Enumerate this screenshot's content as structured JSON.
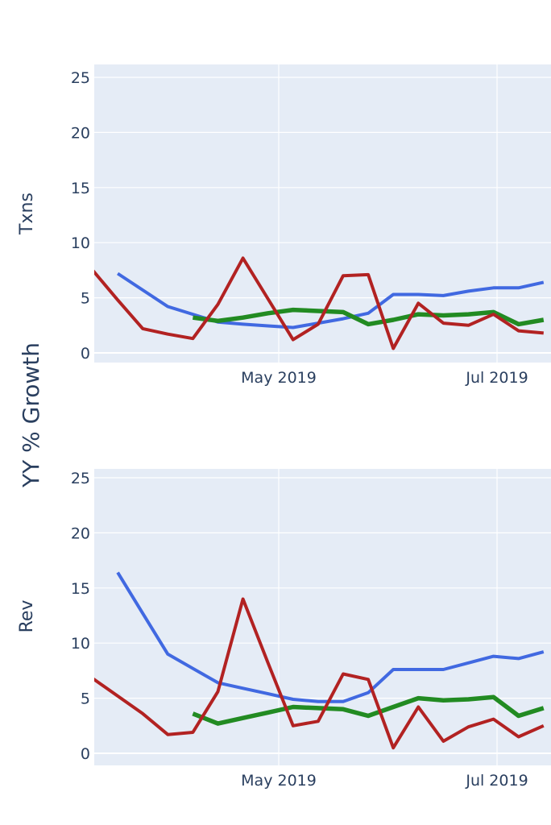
{
  "chart_data": {
    "type": "line",
    "title": "YY % Growth",
    "ylabel": "YY % Growth",
    "x": [
      "2019-03-10",
      "2019-03-17",
      "2019-03-24",
      "2019-03-31",
      "2019-04-07",
      "2019-04-14",
      "2019-04-21",
      "2019-04-28",
      "2019-05-05",
      "2019-05-12",
      "2019-05-19",
      "2019-05-26",
      "2019-06-02",
      "2019-06-09",
      "2019-06-16",
      "2019-06-23",
      "2019-06-30",
      "2019-07-07",
      "2019-07-14"
    ],
    "x_tick_labels": [
      {
        "date": "2019-05-01",
        "label": "May 2019"
      },
      {
        "date": "2019-07-01",
        "label": "Jul 2019"
      }
    ],
    "grid": true,
    "colors": [
      "#4169e1",
      "#228b22",
      "#b22222"
    ],
    "panels": [
      {
        "ylabel": "Txns",
        "ylim": [
          -0.9,
          25.8
        ],
        "yticks": [
          "0",
          "5",
          "10",
          "15",
          "20",
          "25"
        ],
        "series": [
          {
            "name": "blue",
            "color": "#4169e1",
            "values": [
              null,
              7.2,
              5.7,
              4.2,
              3.5,
              2.8,
              2.6,
              2.45,
              2.3,
              2.7,
              3.1,
              3.6,
              5.3,
              5.3,
              5.2,
              5.6,
              5.9,
              5.9,
              6.4
            ]
          },
          {
            "name": "green",
            "color": "#228b22",
            "values": [
              null,
              null,
              null,
              null,
              3.2,
              2.9,
              3.2,
              3.6,
              3.9,
              3.8,
              3.7,
              2.6,
              3.0,
              3.5,
              3.4,
              3.5,
              3.7,
              2.6,
              3.0
            ]
          },
          {
            "name": "red",
            "color": "#b22222",
            "values": [
              7.5,
              4.8,
              2.2,
              1.7,
              1.3,
              4.4,
              8.6,
              4.9,
              1.2,
              2.6,
              7.0,
              7.1,
              0.4,
              4.5,
              2.7,
              2.5,
              3.5,
              2.0,
              1.8
            ]
          }
        ]
      },
      {
        "ylabel": "Rev",
        "ylim": [
          -1.1,
          25.8
        ],
        "yticks": [
          "0",
          "5",
          "10",
          "15",
          "20",
          "25"
        ],
        "series": [
          {
            "name": "blue",
            "color": "#4169e1",
            "values": [
              null,
              16.4,
              12.7,
              9.0,
              7.7,
              6.4,
              5.9,
              5.4,
              4.9,
              4.7,
              4.7,
              5.5,
              7.6,
              7.6,
              7.6,
              8.2,
              8.8,
              8.6,
              9.2
            ]
          },
          {
            "name": "green",
            "color": "#228b22",
            "values": [
              null,
              null,
              null,
              null,
              3.6,
              2.7,
              3.2,
              3.7,
              4.2,
              4.1,
              4.0,
              3.4,
              4.2,
              5.0,
              4.8,
              4.9,
              5.1,
              3.4,
              4.1
            ]
          },
          {
            "name": "red",
            "color": "#b22222",
            "values": [
              6.8,
              5.2,
              3.6,
              1.7,
              1.9,
              5.6,
              14.0,
              8.2,
              2.5,
              2.9,
              7.2,
              6.7,
              0.5,
              4.2,
              1.1,
              2.4,
              3.1,
              1.5,
              2.5
            ]
          }
        ]
      }
    ]
  }
}
